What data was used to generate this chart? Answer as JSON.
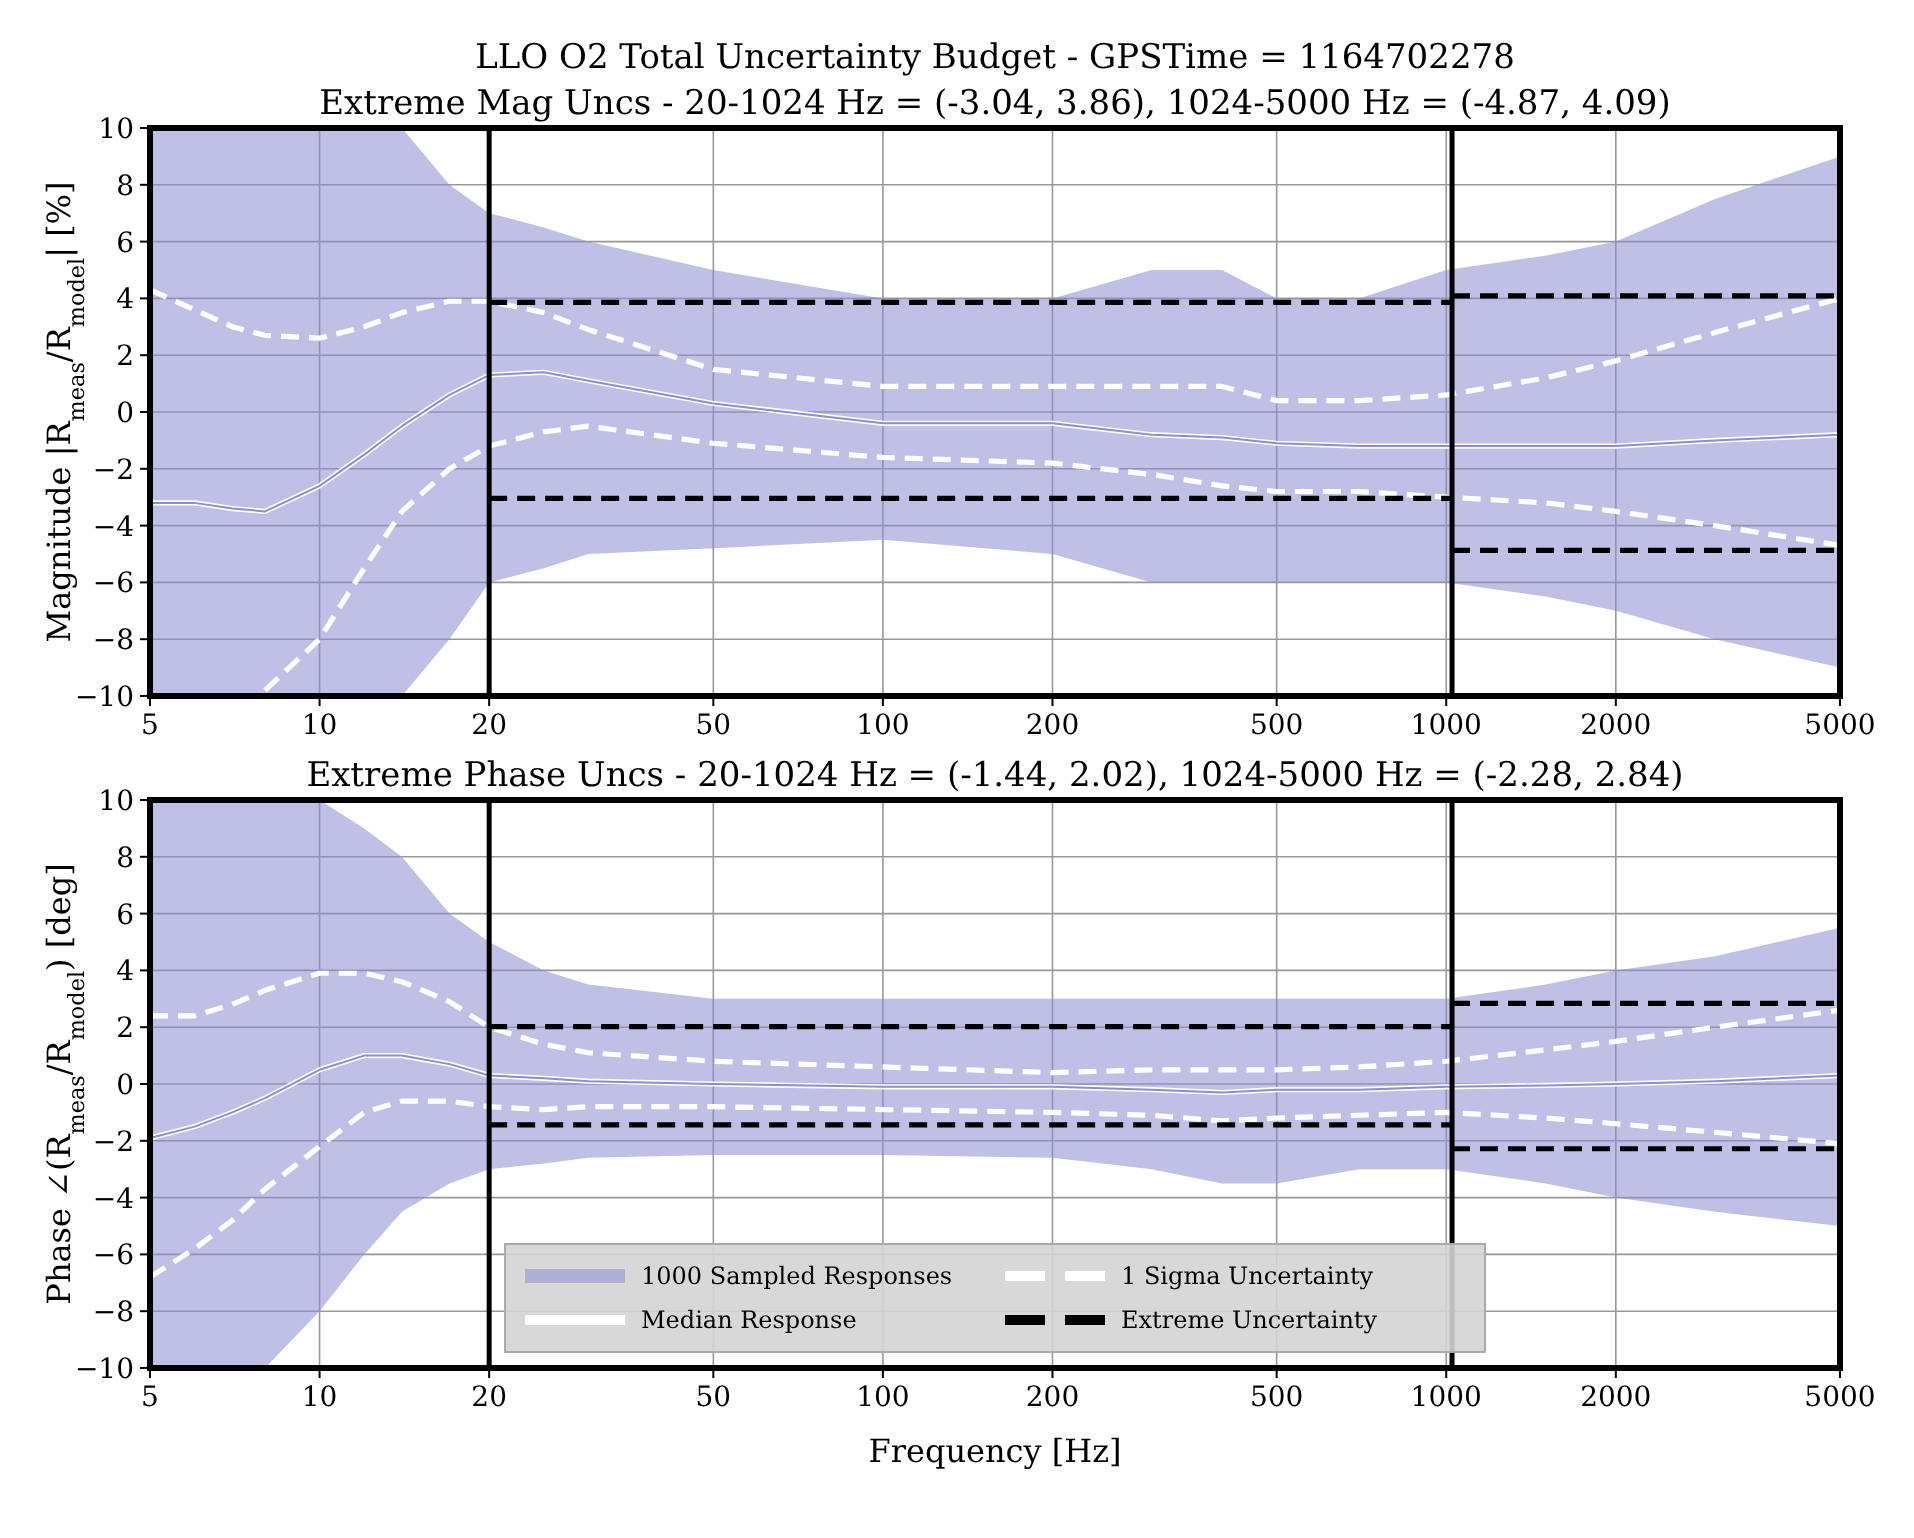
{
  "chart_data": [
    {
      "type": "line",
      "title": "LLO O2 Total Uncertainty Budget - GPSTime = 1164702278",
      "subtitle": "Extreme Mag Uncs - 20-1024 Hz = (-3.04, 3.86), 1024-5000 Hz = (-4.87, 4.09)",
      "ylabel": "Magnitude |R$_{meas}$/R$_{model}$| [%]",
      "log": "x",
      "grid": true,
      "xlim": [
        5,
        5000
      ],
      "ylim": [
        -10,
        10
      ],
      "xticks": [
        5,
        10,
        20,
        50,
        100,
        200,
        500,
        1000,
        2000,
        5000
      ],
      "yticks": [
        -10,
        -8,
        -6,
        -4,
        -2,
        0,
        2,
        4,
        6,
        8,
        10
      ],
      "x": [
        5,
        6,
        7,
        8,
        10,
        12,
        14,
        17,
        20,
        25,
        30,
        50,
        100,
        200,
        300,
        400,
        500,
        700,
        1000,
        1500,
        2000,
        3000,
        5000
      ],
      "ref_lines": [
        {
          "axis": "x",
          "value": 20,
          "color": "#000000"
        },
        {
          "axis": "x",
          "value": 1024,
          "color": "#000000"
        }
      ],
      "series": [
        {
          "color": "#8c8cd2",
          "values": [
            -3.2,
            -3.2,
            -3.4,
            -3.5,
            -2.6,
            -1.5,
            -0.5,
            0.6,
            1.3,
            1.4,
            1.1,
            0.3,
            -0.4,
            -0.4,
            -0.8,
            -0.9,
            -1.1,
            -1.2,
            -1.2,
            -1.2,
            -1.2,
            -1.0,
            -0.8
          ],
          "lower": [
            -10,
            -10,
            -10,
            -10,
            -10,
            -10,
            -10,
            -8,
            -6,
            -5.5,
            -5,
            -4.8,
            -4.5,
            -5,
            -6,
            -6,
            -6,
            -6,
            -6,
            -6.5,
            -7,
            -8,
            -9
          ],
          "upper": [
            10,
            10,
            10,
            10,
            10,
            10,
            10,
            8,
            7,
            6.5,
            6,
            5,
            4,
            4,
            5,
            5,
            4,
            4,
            5,
            5.5,
            6,
            7.5,
            9
          ]
        },
        {
          "color": "#ffffff",
          "line_style": "solid",
          "values": [
            -3.2,
            -3.2,
            -3.4,
            -3.5,
            -2.6,
            -1.5,
            -0.5,
            0.6,
            1.3,
            1.4,
            1.1,
            0.3,
            -0.4,
            -0.4,
            -0.8,
            -0.9,
            -1.1,
            -1.2,
            -1.2,
            -1.2,
            -1.2,
            -1.0,
            -0.8
          ]
        },
        {
          "color": "#ffffff",
          "line_style": "dashed",
          "values": [
            4.3,
            3.6,
            3.0,
            2.7,
            2.6,
            3.0,
            3.5,
            3.9,
            3.9,
            3.5,
            2.9,
            1.5,
            0.9,
            0.9,
            0.9,
            0.9,
            0.4,
            0.4,
            0.6,
            1.2,
            1.8,
            2.8,
            4.0
          ]
        },
        {
          "color": "#ffffff",
          "line_style": "dashed",
          "values": [
            null,
            null,
            null,
            -9.8,
            -8,
            -5.5,
            -3.5,
            -2,
            -1.2,
            -0.7,
            -0.5,
            -1.1,
            -1.6,
            -1.8,
            -2.2,
            -2.6,
            -2.8,
            -2.8,
            -3.0,
            -3.2,
            -3.5,
            -4.0,
            -4.7
          ]
        },
        {
          "color": "#000000",
          "line_style": "dashed",
          "x": [
            20,
            1024
          ],
          "values": [
            3.86,
            3.86
          ]
        },
        {
          "color": "#000000",
          "line_style": "dashed",
          "x": [
            20,
            1024
          ],
          "values": [
            -3.04,
            -3.04
          ]
        },
        {
          "color": "#000000",
          "line_style": "dashed",
          "x": [
            1024,
            5000
          ],
          "values": [
            4.09,
            4.09
          ]
        },
        {
          "color": "#000000",
          "line_style": "dashed",
          "x": [
            1024,
            5000
          ],
          "values": [
            -4.87,
            -4.87
          ]
        }
      ]
    },
    {
      "type": "line",
      "title": "Extreme Phase Uncs - 20-1024 Hz = (-1.44, 2.02), 1024-5000 Hz = (-2.28, 2.84)",
      "xlabel": "Frequency [Hz]",
      "ylabel": "Phase ∠(R$_{meas}$/R$_{model}$) [deg]",
      "log": "x",
      "grid": true,
      "legend": "bottom",
      "xlim": [
        5,
        5000
      ],
      "ylim": [
        -10,
        10
      ],
      "xticks": [
        5,
        10,
        20,
        50,
        100,
        200,
        500,
        1000,
        2000,
        5000
      ],
      "yticks": [
        -10,
        -8,
        -6,
        -4,
        -2,
        0,
        2,
        4,
        6,
        8,
        10
      ],
      "x": [
        5,
        6,
        7,
        8,
        10,
        12,
        14,
        17,
        20,
        25,
        30,
        50,
        100,
        200,
        300,
        400,
        500,
        700,
        1000,
        1500,
        2000,
        3000,
        5000
      ],
      "ref_lines": [
        {
          "axis": "x",
          "value": 20,
          "color": "#000000"
        },
        {
          "axis": "x",
          "value": 1024,
          "color": "#000000"
        }
      ],
      "series": [
        {
          "name": "1000 Sampled Responses",
          "color": "#8c8cd2",
          "values": [
            -1.9,
            -1.5,
            -1.0,
            -0.5,
            0.5,
            1.0,
            1.0,
            0.7,
            0.3,
            0.2,
            0.1,
            0.0,
            -0.1,
            -0.1,
            -0.2,
            -0.3,
            -0.2,
            -0.2,
            -0.1,
            -0.05,
            0.0,
            0.1,
            0.3
          ],
          "lower": [
            -10,
            -10,
            -10,
            -10,
            -8,
            -6,
            -4.5,
            -3.5,
            -3,
            -2.8,
            -2.6,
            -2.5,
            -2.5,
            -2.6,
            -3,
            -3.5,
            -3.5,
            -3,
            -3,
            -3.5,
            -4,
            -4.5,
            -5
          ],
          "upper": [
            10,
            10,
            10,
            10,
            10,
            9,
            8,
            6,
            5,
            4,
            3.5,
            3,
            3,
            3,
            3,
            3,
            3,
            3,
            3,
            3.5,
            4,
            4.5,
            5.5
          ]
        },
        {
          "name": "Median Response",
          "color": "#ffffff",
          "line_style": "solid",
          "values": [
            -1.9,
            -1.5,
            -1.0,
            -0.5,
            0.5,
            1.0,
            1.0,
            0.7,
            0.3,
            0.2,
            0.1,
            0.0,
            -0.1,
            -0.1,
            -0.2,
            -0.3,
            -0.2,
            -0.2,
            -0.1,
            -0.05,
            0.0,
            0.1,
            0.3
          ]
        },
        {
          "name": "1 Sigma Uncertainty",
          "color": "#ffffff",
          "line_style": "dashed",
          "values": [
            2.4,
            2.4,
            2.8,
            3.3,
            3.9,
            3.9,
            3.6,
            2.9,
            2.0,
            1.4,
            1.1,
            0.8,
            0.6,
            0.4,
            0.5,
            0.5,
            0.5,
            0.6,
            0.8,
            1.2,
            1.5,
            2.0,
            2.6
          ]
        },
        {
          "color": "#ffffff",
          "line_style": "dashed",
          "values": [
            -6.8,
            -5.8,
            -4.8,
            -3.7,
            -2.2,
            -1.0,
            -0.6,
            -0.6,
            -0.8,
            -0.9,
            -0.8,
            -0.8,
            -0.9,
            -1.0,
            -1.1,
            -1.3,
            -1.2,
            -1.1,
            -1.0,
            -1.2,
            -1.4,
            -1.7,
            -2.1
          ]
        },
        {
          "name": "Extreme Uncertainty",
          "color": "#000000",
          "line_style": "dashed",
          "x": [
            20,
            1024
          ],
          "values": [
            2.02,
            2.02
          ]
        },
        {
          "color": "#000000",
          "line_style": "dashed",
          "x": [
            20,
            1024
          ],
          "values": [
            -1.44,
            -1.44
          ]
        },
        {
          "color": "#000000",
          "line_style": "dashed",
          "x": [
            1024,
            5000
          ],
          "values": [
            2.84,
            2.84
          ]
        },
        {
          "color": "#000000",
          "line_style": "dashed",
          "x": [
            1024,
            5000
          ],
          "values": [
            -2.28,
            -2.28
          ]
        }
      ]
    }
  ]
}
